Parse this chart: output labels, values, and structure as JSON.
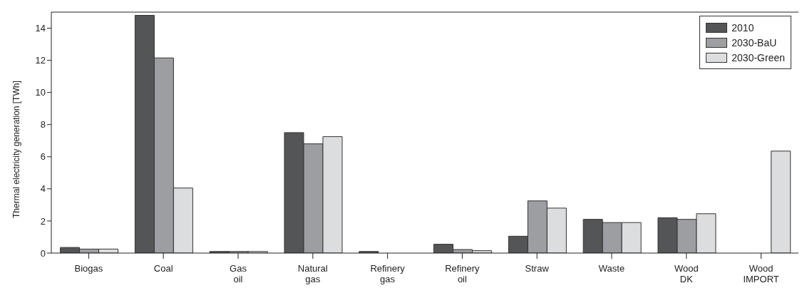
{
  "chart_data": {
    "type": "bar",
    "ylabel": "Thermal electricity generation [TWh]",
    "categories": [
      "Biogas",
      "Coal",
      "Gas\noil",
      "Natural\ngas",
      "Refinery\ngas",
      "Refinery\noil",
      "Straw",
      "Waste",
      "Wood\nDK",
      "Wood\nIMPORT"
    ],
    "series": [
      {
        "name": "2010",
        "color": "#545557",
        "values": [
          0.35,
          14.8,
          0.1,
          7.5,
          0.1,
          0.55,
          1.05,
          2.1,
          2.2,
          0
        ]
      },
      {
        "name": "2030-BaU",
        "color": "#9d9ea1",
        "values": [
          0.25,
          12.15,
          0.1,
          6.8,
          0,
          0.22,
          3.25,
          1.9,
          2.1,
          0
        ]
      },
      {
        "name": "2030-Green",
        "color": "#dcdddf",
        "values": [
          0.25,
          4.05,
          0.1,
          7.25,
          0,
          0.15,
          2.8,
          1.9,
          2.45,
          6.35
        ]
      }
    ],
    "ylim": [
      0,
      15
    ],
    "yticks": [
      0,
      2,
      4,
      6,
      8,
      10,
      12,
      14
    ],
    "legend": "top right"
  }
}
